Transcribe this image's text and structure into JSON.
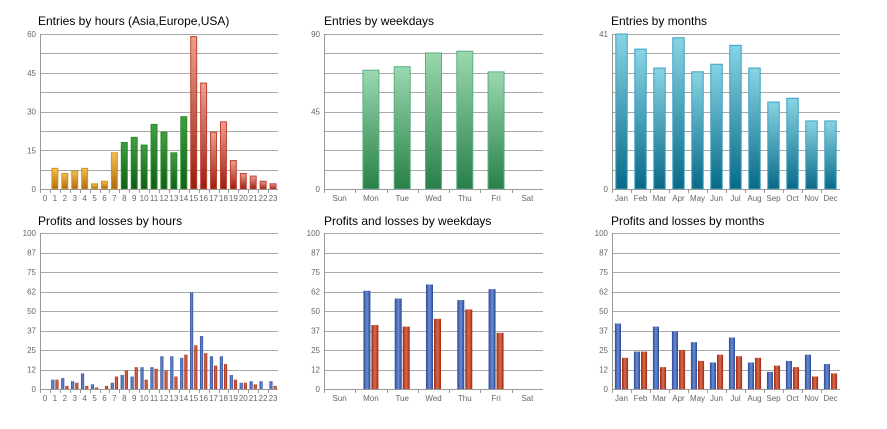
{
  "colors": {
    "orange": "#d8901c",
    "green": "#2a8a2a",
    "red": "#c04030",
    "weekday_green": "#5ab080",
    "month_cyan": "#3aa0c0",
    "blue": "#3a5aa8",
    "loss_red": "#b83a20"
  },
  "chart_data": [
    {
      "type": "bar",
      "title": "Entries by hours (Asia,Europe,USA)",
      "ylim": [
        0,
        60
      ],
      "yticks": [
        "0",
        "15",
        "30",
        "45",
        "60"
      ],
      "grid_divisions": 8,
      "categories": [
        "0",
        "1",
        "2",
        "3",
        "4",
        "5",
        "6",
        "7",
        "8",
        "9",
        "10",
        "11",
        "12",
        "13",
        "14",
        "15",
        "16",
        "17",
        "18",
        "19",
        "20",
        "21",
        "22",
        "23"
      ],
      "values": [
        0,
        8,
        6,
        7,
        8,
        2,
        3,
        14,
        18,
        20,
        17,
        25,
        22,
        14,
        28,
        59,
        41,
        22,
        26,
        11,
        6,
        5,
        3,
        2
      ],
      "segments": [
        {
          "name": "Asia",
          "from": 0,
          "to": 7,
          "color": "orange"
        },
        {
          "name": "Europe",
          "from": 8,
          "to": 14,
          "color": "green"
        },
        {
          "name": "USA",
          "from": 15,
          "to": 23,
          "color": "red"
        }
      ]
    },
    {
      "type": "bar",
      "title": "Entries by weekdays",
      "ylim": [
        0,
        90
      ],
      "yticks": [
        "0",
        "45",
        "90"
      ],
      "grid_divisions": 8,
      "categories": [
        "Sun",
        "Mon",
        "Tue",
        "Wed",
        "Thu",
        "Fri",
        "Sat"
      ],
      "values": [
        0,
        69,
        71,
        79,
        80,
        68,
        0
      ],
      "color": "weekday_green"
    },
    {
      "type": "bar",
      "title": "Entries by months",
      "ylim": [
        0,
        41
      ],
      "yticks": [
        "0",
        "41"
      ],
      "grid_divisions": 8,
      "categories": [
        "Jan",
        "Feb",
        "Mar",
        "Apr",
        "May",
        "Jun",
        "Jul",
        "Aug",
        "Sep",
        "Oct",
        "Nov",
        "Dec"
      ],
      "values": [
        41,
        37,
        32,
        40,
        31,
        33,
        38,
        32,
        23,
        24,
        18,
        18
      ],
      "color": "month_cyan"
    },
    {
      "type": "bar",
      "title": "Profits and losses by hours",
      "ylim": [
        0,
        100
      ],
      "yticks": [
        "0",
        "12",
        "25",
        "37",
        "50",
        "62",
        "75",
        "87",
        "100"
      ],
      "grid_divisions": 8,
      "categories": [
        "0",
        "1",
        "2",
        "3",
        "4",
        "5",
        "6",
        "7",
        "8",
        "9",
        "10",
        "11",
        "12",
        "13",
        "14",
        "15",
        "16",
        "17",
        "18",
        "19",
        "20",
        "21",
        "22",
        "23"
      ],
      "series": [
        {
          "name": "Profits",
          "color": "blue",
          "values": [
            0,
            6,
            7,
            5,
            10,
            3,
            0,
            4,
            9,
            8,
            14,
            14,
            21,
            21,
            20,
            62,
            34,
            21,
            21,
            9,
            4,
            5,
            5,
            5
          ]
        },
        {
          "name": "Losses",
          "color": "loss_red",
          "values": [
            0,
            6,
            2,
            4,
            2,
            1,
            2,
            8,
            12,
            14,
            6,
            13,
            12,
            8,
            22,
            28,
            23,
            15,
            16,
            6,
            4,
            3,
            0,
            2
          ]
        }
      ]
    },
    {
      "type": "bar",
      "title": "Profits and losses by weekdays",
      "ylim": [
        0,
        100
      ],
      "yticks": [
        "0",
        "12",
        "25",
        "37",
        "50",
        "62",
        "75",
        "87",
        "100"
      ],
      "grid_divisions": 8,
      "categories": [
        "Sun",
        "Mon",
        "Tue",
        "Wed",
        "Thu",
        "Fri",
        "Sat"
      ],
      "series": [
        {
          "name": "Profits",
          "color": "blue",
          "values": [
            0,
            63,
            58,
            67,
            57,
            64,
            0
          ]
        },
        {
          "name": "Losses",
          "color": "loss_red",
          "values": [
            0,
            41,
            40,
            45,
            51,
            36,
            0
          ]
        }
      ]
    },
    {
      "type": "bar",
      "title": "Profits and losses by months",
      "ylim": [
        0,
        100
      ],
      "yticks": [
        "0",
        "12",
        "25",
        "37",
        "50",
        "62",
        "75",
        "87",
        "100"
      ],
      "grid_divisions": 8,
      "categories": [
        "Jan",
        "Feb",
        "Mar",
        "Apr",
        "May",
        "Jun",
        "Jul",
        "Aug",
        "Sep",
        "Oct",
        "Nov",
        "Dec"
      ],
      "series": [
        {
          "name": "Profits",
          "color": "blue",
          "values": [
            42,
            24,
            40,
            37,
            30,
            17,
            33,
            17,
            11,
            18,
            22,
            16
          ]
        },
        {
          "name": "Losses",
          "color": "loss_red",
          "values": [
            20,
            24,
            14,
            25,
            18,
            22,
            21,
            20,
            15,
            14,
            8,
            10
          ]
        }
      ]
    }
  ]
}
